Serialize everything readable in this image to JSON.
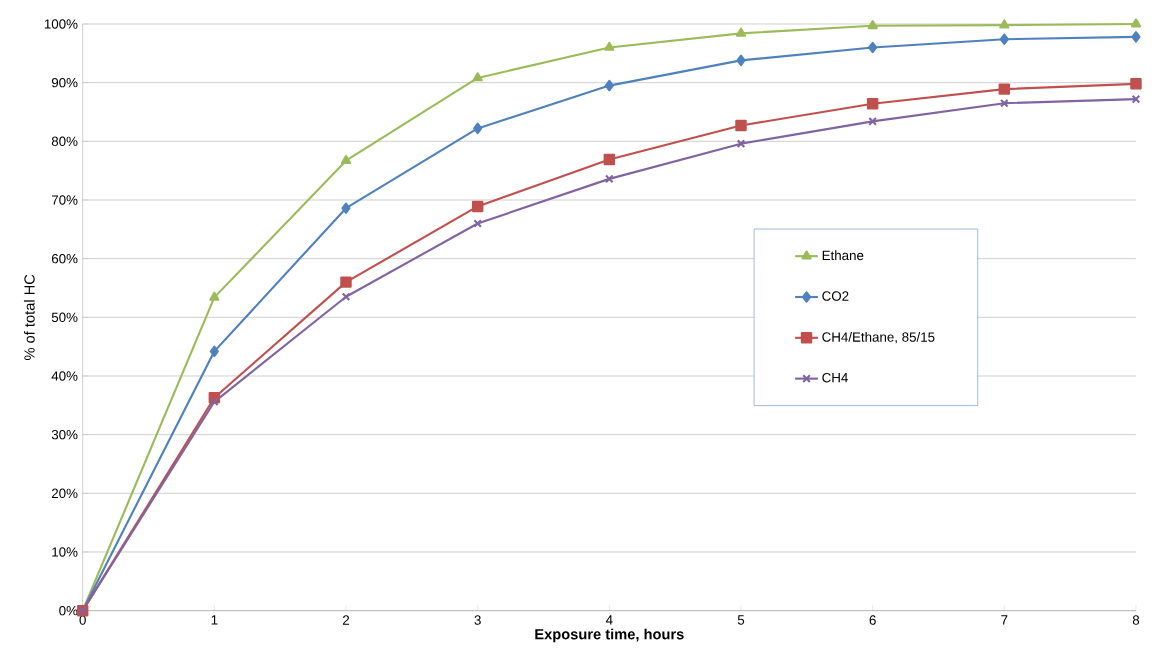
{
  "chart_data": {
    "type": "line",
    "xlabel": "Exposure time, hours",
    "ylabel": "% of total HC",
    "x": [
      0,
      1,
      2,
      3,
      4,
      5,
      6,
      7,
      8
    ],
    "series": [
      {
        "name": "Ethane",
        "color": "#9bbb59",
        "marker": "triangle",
        "values": [
          0,
          53.4,
          76.7,
          90.8,
          96.0,
          98.4,
          99.7,
          99.8,
          100
        ]
      },
      {
        "name": "CO2",
        "color": "#4f81bd",
        "marker": "diamond",
        "values": [
          0,
          44.2,
          68.6,
          82.2,
          89.5,
          93.8,
          96.0,
          97.4,
          97.8
        ]
      },
      {
        "name": "CH4/Ethane, 85/15",
        "color": "#c0504d",
        "marker": "square",
        "values": [
          0,
          36.3,
          56.0,
          68.9,
          76.9,
          82.7,
          86.4,
          88.9,
          89.8
        ]
      },
      {
        "name": "CH4",
        "color": "#8064a2",
        "marker": "cross",
        "values": [
          0,
          35.6,
          53.5,
          66.0,
          73.6,
          79.6,
          83.4,
          86.5,
          87.2
        ]
      }
    ],
    "xlim": [
      0,
      8
    ],
    "xticks": [
      0,
      1,
      2,
      3,
      4,
      5,
      6,
      7,
      8
    ],
    "ylim": [
      0,
      100
    ],
    "yticks": [
      {
        "value": 0,
        "label": "0%"
      },
      {
        "value": 10,
        "label": "10%"
      },
      {
        "value": 20,
        "label": "20%"
      },
      {
        "value": 30,
        "label": "30%"
      },
      {
        "value": 40,
        "label": "40%"
      },
      {
        "value": 50,
        "label": "50%"
      },
      {
        "value": 60,
        "label": "60%"
      },
      {
        "value": 70,
        "label": "70%"
      },
      {
        "value": 80,
        "label": "80%"
      },
      {
        "value": 90,
        "label": "90%"
      },
      {
        "value": 100,
        "label": "100%"
      }
    ],
    "grid": "y",
    "legend": "right",
    "line_style": "solid"
  }
}
